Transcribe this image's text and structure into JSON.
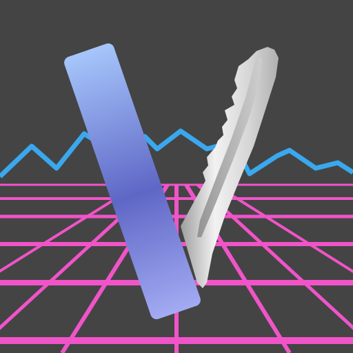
{
  "colors": {
    "background": "#444444",
    "grid": "#f054c8",
    "mountain_line": "#3aa8ee",
    "plate_top": "#a6c6fb",
    "plate_mid": "#5f67c6",
    "plate_bottom": "#a3abf3",
    "blade_light": "#f2f2f2",
    "blade_mid": "#cfcfcf",
    "blade_dark": "#9e9e9e"
  },
  "icons": {
    "logo": "v-logo-icon",
    "plate": "gradient-plate-shape",
    "blade": "key-blade-shape"
  }
}
